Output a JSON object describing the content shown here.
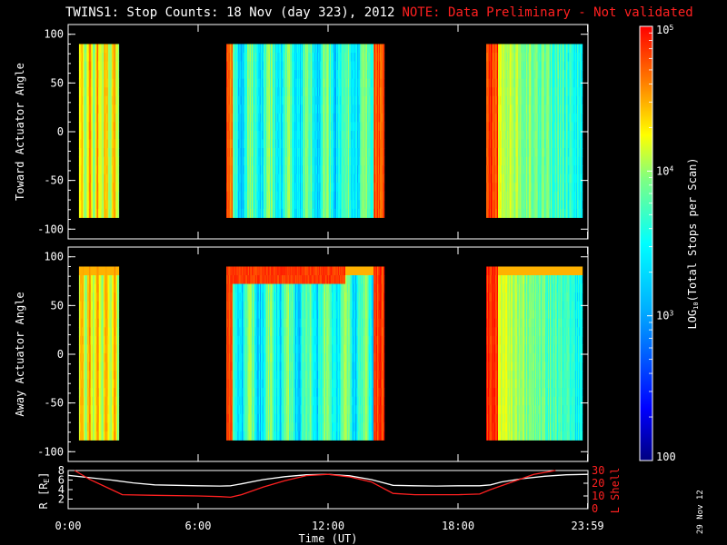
{
  "header": {
    "title": "TWINS1: Stop Counts: 18 Nov (day 323), 2012",
    "note": "NOTE: Data Preliminary - Not validated"
  },
  "footer": {
    "date_stamp": "29 Nov 12"
  },
  "colors": {
    "background": "#000000",
    "axes": "#ffffff",
    "l_shell_line": "#ff2020",
    "r_line": "#ffffff"
  },
  "chart_data": [
    {
      "type": "heatmap",
      "name": "toward",
      "ylabel": "Toward Actuator Angle",
      "xlim": [
        0,
        24
      ],
      "ylim": [
        -110,
        110
      ],
      "y_ticks": [
        100,
        50,
        0,
        -50,
        -100
      ],
      "y_data_range": [
        -88,
        90
      ],
      "data_intervals_hours": [
        [
          0.5,
          2.35
        ],
        [
          7.3,
          14.6
        ],
        [
          19.3,
          23.75
        ]
      ],
      "typical_level_by_interval": [
        "high",
        "low",
        "high"
      ]
    },
    {
      "type": "heatmap",
      "name": "away",
      "ylabel": "Away Actuator Angle",
      "xlim": [
        0,
        24
      ],
      "ylim": [
        -110,
        110
      ],
      "y_ticks": [
        100,
        50,
        0,
        -50,
        -100
      ],
      "y_data_range": [
        -88,
        90
      ],
      "data_intervals_hours": [
        [
          0.5,
          2.35
        ],
        [
          7.3,
          14.6
        ],
        [
          19.3,
          23.75
        ]
      ],
      "typical_level_by_interval": [
        "high",
        "low",
        "high"
      ]
    },
    {
      "type": "line",
      "name": "orbit",
      "xlabel": "Time (UT)",
      "ylabel_left": "R [R",
      "ylabel_left_sub": "E",
      "ylabel_left_end": "]",
      "ylabel_right": "L Shell",
      "x_tick_labels": [
        "0:00",
        "6:00",
        "12:00",
        "18:00",
        "23:59"
      ],
      "x_ticks_hours": [
        0,
        6,
        12,
        18,
        23.983
      ],
      "ylim_left": [
        0,
        8
      ],
      "y_ticks_left": [
        2,
        4,
        6,
        8
      ],
      "ylim_right": [
        0,
        30
      ],
      "y_ticks_right": [
        0,
        10,
        20,
        30
      ],
      "series": [
        {
          "axis": "left",
          "x": [
            0.0,
            1.0,
            2.0,
            3.0,
            4.0,
            5.0,
            6.0,
            7.0,
            7.5,
            8.0,
            9.0,
            10.0,
            11.0,
            12.0,
            13.0,
            14.0,
            15.0,
            16.0,
            17.0,
            18.0,
            19.0,
            19.5,
            20.0,
            21.0,
            22.0,
            23.0,
            24.0
          ],
          "values": [
            7.0,
            6.5,
            6.0,
            5.4,
            5.0,
            4.9,
            4.8,
            4.75,
            4.8,
            5.2,
            6.1,
            6.7,
            7.1,
            7.2,
            6.9,
            6.1,
            4.9,
            4.8,
            4.75,
            4.8,
            4.8,
            5.0,
            5.6,
            6.3,
            6.8,
            7.1,
            7.2
          ]
        },
        {
          "axis": "right",
          "x": [
            0.3,
            1.0,
            2.0,
            2.5,
            4.0,
            6.0,
            7.0,
            7.5,
            8.0,
            9.0,
            10.0,
            11.0,
            12.0,
            13.0,
            14.0,
            15.0,
            16.0,
            18.0,
            19.0,
            19.5,
            20.5,
            21.5,
            22.5
          ],
          "values": [
            31,
            23,
            15,
            11,
            10.5,
            10,
            9.5,
            9,
            11,
            17,
            22,
            26,
            27,
            25,
            21,
            12,
            11,
            11,
            11.5,
            15,
            21,
            27,
            32
          ]
        }
      ]
    },
    {
      "type": "colorbar",
      "name": "counts-colorbar",
      "label": "LOG",
      "label_sub": "10",
      "label_end": "(Total Stops per Scan)",
      "scale": "log",
      "range": [
        100,
        100000
      ],
      "tick_labels": [
        "100",
        "10",
        "10",
        "10"
      ],
      "tick_sups": [
        "",
        "3",
        "4",
        "5"
      ],
      "tick_values": [
        100,
        1000,
        10000,
        100000
      ]
    }
  ]
}
